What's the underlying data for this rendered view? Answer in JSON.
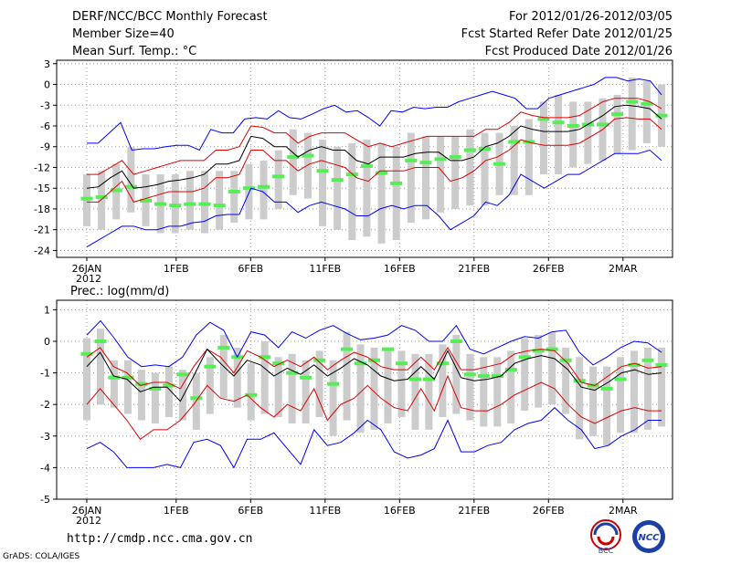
{
  "header": {
    "title": "DERF/NCC/BCC Monthly Forecast",
    "member_size": "Member Size=40",
    "variable1": "Mean Surf. Temp.: °C",
    "period": "For 2012/01/26-2012/03/05",
    "started": "Fcst Started Refer Date 2012/01/25",
    "produced": "Fcst Produced Date 2012/01/26"
  },
  "footer": {
    "url": "http://cmdp.ncc.cma.gov.cn",
    "grads": "GrADS: COLA/IGES",
    "logo1_text": "BCC",
    "logo2_text": "NCC"
  },
  "colors": {
    "envelope": "#0000ff",
    "spread": "#e00000",
    "mean": "#000000",
    "bar": "#cccccc",
    "median": "#55ee55",
    "grid": "#888888"
  },
  "chart_data": [
    {
      "type": "line",
      "title": "Mean Surf. Temp.: °C",
      "ylim": [
        -25,
        3.5
      ],
      "yticks": [
        3,
        0,
        -3,
        -6,
        -9,
        -12,
        -15,
        -18,
        -21,
        -24
      ],
      "ytick_labels": [
        "3",
        "0",
        "-3",
        "-6",
        "-9",
        "-12",
        "-15",
        "-18",
        "-21",
        "-24"
      ],
      "x_days": 40,
      "xtick_days": [
        0,
        6,
        11,
        16,
        21,
        26,
        31,
        36
      ],
      "xtick_labels": [
        "26JAN",
        "1FEB",
        "6FEB",
        "11FEB",
        "16FEB",
        "21FEB",
        "26FEB",
        "2MAR"
      ],
      "xtick_sublabel": "2012",
      "series": [
        {
          "name": "max",
          "values": [
            -8.5,
            -8.5,
            -7,
            -5.5,
            -9.5,
            -9.3,
            -9.3,
            -9,
            -8.8,
            -8.8,
            -9.5,
            -6.5,
            -7,
            -7,
            -5,
            -4.8,
            -5,
            -3.8,
            -4.8,
            -5,
            -4.3,
            -3.5,
            -3,
            -4,
            -3.8,
            -4.8,
            -6,
            -3.8,
            -4,
            -3.3,
            -3.5,
            -3.3,
            -3.3,
            -2.5,
            -2,
            -1.5,
            -1,
            -1.5,
            -2,
            -3.5,
            -3.5,
            -2,
            -1.5,
            -1,
            -0.5,
            0,
            1,
            1,
            0.5,
            0.8,
            0.5,
            -1.5
          ]
        },
        {
          "name": "q_high",
          "values": [
            -13,
            -13,
            -12,
            -11,
            -13,
            -12.5,
            -12,
            -11.5,
            -11,
            -11,
            -11,
            -9.5,
            -9.5,
            -9,
            -6,
            -6.2,
            -7,
            -7,
            -8.5,
            -7.5,
            -7,
            -7,
            -7,
            -8,
            -9,
            -8.5,
            -9,
            -8.5,
            -8,
            -7.5,
            -7.5,
            -7.5,
            -7.5,
            -7.5,
            -6.5,
            -6.5,
            -5.5,
            -4,
            -4.5,
            -4.8,
            -4.8,
            -4.8,
            -4.5,
            -3.5,
            -2.5,
            -2,
            -2,
            -2,
            -2.5,
            -3.5
          ]
        },
        {
          "name": "mean",
          "values": [
            -15,
            -14.8,
            -13.5,
            -12.5,
            -15,
            -14.8,
            -14.5,
            -14,
            -13.8,
            -13.5,
            -13,
            -11.5,
            -11.5,
            -11,
            -7.5,
            -7.8,
            -9,
            -9,
            -10.5,
            -9.5,
            -9,
            -9.5,
            -9.5,
            -11,
            -11.5,
            -10.5,
            -10.5,
            -10.5,
            -10,
            -9.8,
            -9.8,
            -11,
            -11,
            -10.5,
            -9,
            -8.5,
            -7.5,
            -6,
            -6.5,
            -6.8,
            -6.8,
            -6.8,
            -6.5,
            -5.5,
            -4.5,
            -3.2,
            -3,
            -3.2,
            -3.5,
            -5
          ]
        },
        {
          "name": "q_low",
          "values": [
            -17,
            -17,
            -15.5,
            -14,
            -17,
            -16.5,
            -16,
            -15.5,
            -15.5,
            -15.5,
            -15,
            -13.5,
            -13.5,
            -13,
            -9.5,
            -9.5,
            -11,
            -11,
            -12.5,
            -11.5,
            -11,
            -11.5,
            -12,
            -13.5,
            -14,
            -12.5,
            -12.5,
            -12.5,
            -12,
            -12,
            -12,
            -14,
            -13.5,
            -12.5,
            -11,
            -10.5,
            -9.5,
            -8,
            -8.5,
            -8.8,
            -8.8,
            -8.8,
            -8.5,
            -7.5,
            -6.5,
            -5,
            -4.8,
            -5,
            -5,
            -6.5
          ]
        },
        {
          "name": "min",
          "values": [
            -23.5,
            -22.5,
            -21.5,
            -20.5,
            -20.5,
            -21,
            -21,
            -20.5,
            -20.5,
            -20,
            -19.8,
            -19,
            -18.8,
            -18.8,
            -15,
            -15.5,
            -17,
            -17,
            -18.5,
            -17.5,
            -17,
            -17.5,
            -18,
            -19,
            -19,
            -18,
            -17.5,
            -18,
            -17.5,
            -17.5,
            -19,
            -21,
            -20,
            -19,
            -17,
            -17.5,
            -16,
            -13,
            -14,
            -15,
            -14,
            -13,
            -13,
            -12,
            -11,
            -10,
            -10,
            -10,
            -9.5,
            -11
          ]
        }
      ],
      "boxes": [
        {
          "low": -20.5,
          "high": -13,
          "median": -16.5
        },
        {
          "low": -21,
          "high": -12.5,
          "median": -16.3
        },
        {
          "low": -19.5,
          "high": -11.5,
          "median": -15.3
        },
        {
          "low": -18.5,
          "high": -9,
          "median": -14.8
        },
        {
          "low": -20.5,
          "high": -13,
          "median": -16.8
        },
        {
          "low": -21.5,
          "high": -13,
          "median": -17.3
        },
        {
          "low": -21.5,
          "high": -13,
          "median": -17.5
        },
        {
          "low": -21,
          "high": -12.5,
          "median": -17.3
        },
        {
          "low": -21.5,
          "high": -12.5,
          "median": -17.3
        },
        {
          "low": -21,
          "high": -12.5,
          "median": -17.5
        },
        {
          "low": -20,
          "high": -12.5,
          "median": -15.5
        },
        {
          "low": -19.5,
          "high": -11.5,
          "median": -15
        },
        {
          "low": -19.5,
          "high": -11,
          "median": -14.8
        },
        {
          "low": -18,
          "high": -9.5,
          "median": -13.3
        },
        {
          "low": -16,
          "high": -6.5,
          "median": -10.5
        },
        {
          "low": -16.5,
          "high": -7,
          "median": -10.3
        },
        {
          "low": -20.5,
          "high": -8,
          "median": -12.5
        },
        {
          "low": -21,
          "high": -9,
          "median": -13.8
        },
        {
          "low": -22.5,
          "high": -8.5,
          "median": -13
        },
        {
          "low": -22,
          "high": -8,
          "median": -11.8
        },
        {
          "low": -23,
          "high": -8.5,
          "median": -12.8
        },
        {
          "low": -22.5,
          "high": -9,
          "median": -14.3
        },
        {
          "low": -20,
          "high": -7,
          "median": -11
        },
        {
          "low": -19.5,
          "high": -7.5,
          "median": -11.3
        },
        {
          "low": -18.5,
          "high": -7.5,
          "median": -10.8
        },
        {
          "low": -18,
          "high": -7.5,
          "median": -10.5
        },
        {
          "low": -17.5,
          "high": -6.5,
          "median": -9.5
        },
        {
          "low": -17.5,
          "high": -7,
          "median": -9.3
        },
        {
          "low": -16,
          "high": -7,
          "median": -11.5
        },
        {
          "low": -16,
          "high": -6,
          "median": -8.3
        },
        {
          "low": -16,
          "high": -5,
          "median": -8.3
        },
        {
          "low": -13,
          "high": -2.5,
          "median": -5
        },
        {
          "low": -13,
          "high": -1.5,
          "median": -5.5
        },
        {
          "low": -12,
          "high": -2.5,
          "median": -6
        },
        {
          "low": -11.5,
          "high": -2.5,
          "median": -5.8
        },
        {
          "low": -11,
          "high": -2,
          "median": -5.8
        },
        {
          "low": -10,
          "high": -1.5,
          "median": -4.3
        },
        {
          "low": -9.5,
          "high": 1,
          "median": -2.5
        },
        {
          "low": -8.5,
          "high": 0.5,
          "median": -2.8
        },
        {
          "low": -9,
          "high": 0,
          "median": -4.5
        }
      ]
    },
    {
      "type": "line",
      "title": "Prec.: log(mm/d)",
      "ylim": [
        -5,
        1.3
      ],
      "yticks": [
        1,
        0,
        -1,
        -2,
        -3,
        -4,
        -5
      ],
      "ytick_labels": [
        "1",
        "0",
        "-1",
        "-2",
        "-3",
        "-4",
        "-5"
      ],
      "x_days": 40,
      "xtick_days": [
        0,
        6,
        11,
        16,
        21,
        26,
        31,
        36
      ],
      "xtick_labels": [
        "26JAN",
        "1FEB",
        "6FEB",
        "11FEB",
        "16FEB",
        "21FEB",
        "26FEB",
        "2MAR"
      ],
      "xtick_sublabel": "2012",
      "series": [
        {
          "name": "max",
          "values": [
            0.2,
            0.65,
            0.1,
            -0.5,
            -0.8,
            -0.75,
            -0.8,
            -0.5,
            0.2,
            0.6,
            0.35,
            -0.5,
            0.3,
            0.2,
            -0.2,
            0.3,
            0.1,
            0.35,
            0.5,
            0.25,
            0.05,
            0.1,
            0.2,
            0.5,
            0.35,
            0,
            0,
            0.5,
            -0.25,
            -0.4,
            -0.2,
            0,
            0.15,
            0.1,
            0.3,
            0.35,
            -0.35,
            -0.75,
            -0.5,
            -0.2,
            0,
            -0.05,
            -0.35
          ]
        },
        {
          "name": "q_high",
          "values": [
            -0.5,
            -0.2,
            -0.8,
            -1,
            -1.4,
            -1.3,
            -1.3,
            -1.5,
            -0.8,
            -0.25,
            -0.5,
            -1,
            -0.3,
            -0.5,
            -0.8,
            -0.6,
            -0.8,
            -0.5,
            -0.9,
            -0.6,
            -0.35,
            -0.5,
            -0.8,
            -0.9,
            -0.9,
            -0.5,
            -0.9,
            -0.2,
            -0.9,
            -0.9,
            -0.8,
            -0.7,
            -0.4,
            -0.3,
            -0.25,
            -0.3,
            -0.7,
            -1.3,
            -1.4,
            -1.1,
            -0.8,
            -0.7,
            -0.85,
            -0.8
          ]
        },
        {
          "name": "mean",
          "values": [
            -0.8,
            -0.35,
            -1.1,
            -1.2,
            -1.6,
            -1.45,
            -1.45,
            -1.9,
            -1.1,
            -0.25,
            -0.7,
            -1.1,
            -0.6,
            -0.75,
            -1.1,
            -0.85,
            -1.05,
            -0.75,
            -1.1,
            -0.85,
            -0.55,
            -0.75,
            -1.1,
            -1.25,
            -1.2,
            -0.8,
            -1.2,
            -0.3,
            -1.15,
            -1.25,
            -1.2,
            -1.1,
            -0.7,
            -0.55,
            -0.45,
            -0.55,
            -0.9,
            -1.45,
            -1.55,
            -1.3,
            -1,
            -0.9,
            -1.05,
            -1
          ]
        },
        {
          "name": "q_low",
          "values": [
            -2,
            -1.5,
            -2,
            -2.5,
            -3.1,
            -2.8,
            -2.8,
            -2.5,
            -2,
            -1.4,
            -1.8,
            -1.9,
            -1.7,
            -2.1,
            -2.4,
            -2,
            -2.2,
            -1.5,
            -2.5,
            -2,
            -1.8,
            -1.4,
            -1.8,
            -2.1,
            -2.2,
            -1.5,
            -2.2,
            -1.1,
            -2.1,
            -2.2,
            -2.2,
            -2,
            -1.7,
            -1.5,
            -1.3,
            -1.5,
            -2,
            -2.4,
            -2.6,
            -2.4,
            -2.2,
            -2.1,
            -2.2,
            -2.2
          ]
        },
        {
          "name": "min",
          "values": [
            -3.4,
            -3.2,
            -3.5,
            -4,
            -4,
            -4,
            -3.9,
            -4,
            -3.2,
            -3.1,
            -3.3,
            -4,
            -3.1,
            -3.1,
            -2.9,
            -3.4,
            -3.9,
            -2.8,
            -3.3,
            -3.2,
            -2.9,
            -2.5,
            -2.8,
            -3.5,
            -3.7,
            -3.6,
            -3.4,
            -2.5,
            -3.5,
            -3.5,
            -3.3,
            -3.2,
            -2.8,
            -2.6,
            -2.5,
            -2.1,
            -2.5,
            -2.8,
            -3.4,
            -3.3,
            -3,
            -2.8,
            -2.5,
            -2.5
          ]
        }
      ],
      "boxes": [
        {
          "low": -2.5,
          "high": 0.1,
          "median": -0.4
        },
        {
          "low": -2.0,
          "high": 0.4,
          "median": 0.0
        },
        {
          "low": -2.1,
          "high": -0.6,
          "median": -1.15
        },
        {
          "low": -2.3,
          "high": -0.6,
          "median": -1.15
        },
        {
          "low": -2.5,
          "high": -0.9,
          "median": -1.35
        },
        {
          "low": -2.6,
          "high": -1.0,
          "median": -1.5
        },
        {
          "low": -2.4,
          "high": -0.8,
          "median": -1.4
        },
        {
          "low": -2.5,
          "high": -0.9,
          "median": -1.05
        },
        {
          "low": -2.8,
          "high": -1.0,
          "median": -1.8
        },
        {
          "low": -2.3,
          "high": -0.5,
          "median": -0.8
        },
        {
          "low": -1.8,
          "high": 0.2,
          "median": -0.2
        },
        {
          "low": -2.1,
          "high": -0.2,
          "median": -0.5
        },
        {
          "low": -2.5,
          "high": -0.7,
          "median": -1.7
        },
        {
          "low": -2.3,
          "high": 0.0,
          "median": -0.5
        },
        {
          "low": -2.4,
          "high": -0.5,
          "median": -0.7
        },
        {
          "low": -2.6,
          "high": -0.4,
          "median": -1.0
        },
        {
          "low": -2.6,
          "high": -0.6,
          "median": -1.15
        },
        {
          "low": -2.4,
          "high": -0.3,
          "median": -0.6
        },
        {
          "low": -3.0,
          "high": -0.6,
          "median": -1.35
        },
        {
          "low": -2.5,
          "high": 0.3,
          "median": -0.25
        },
        {
          "low": -2.9,
          "high": -0.1,
          "median": -0.7
        },
        {
          "low": -2.8,
          "high": -0.2,
          "median": -0.6
        },
        {
          "low": -2.6,
          "high": -0.2,
          "median": -0.25
        },
        {
          "low": -2.4,
          "high": -0.3,
          "median": -0.7
        },
        {
          "low": -2.8,
          "high": -0.4,
          "median": -1.2
        },
        {
          "low": -2.8,
          "high": -0.4,
          "median": -1.2
        },
        {
          "low": -2.4,
          "high": -0.1,
          "median": -0.7
        },
        {
          "low": -2.3,
          "high": 0.2,
          "median": 0.0
        },
        {
          "low": -2.5,
          "high": -0.4,
          "median": -1.05
        },
        {
          "low": -2.7,
          "high": -0.5,
          "median": -1.1
        },
        {
          "low": -2.7,
          "high": -0.5,
          "median": -1.1
        },
        {
          "low": -2.6,
          "high": -0.3,
          "median": -0.9
        },
        {
          "low": -2.2,
          "high": 0.1,
          "median": -0.5
        },
        {
          "low": -2.1,
          "high": 0.2,
          "median": -0.3
        },
        {
          "low": -2.0,
          "high": 0.3,
          "median": -0.25
        },
        {
          "low": -2.3,
          "high": -0.2,
          "median": -0.6
        },
        {
          "low": -3.1,
          "high": -0.5,
          "median": -1.25
        },
        {
          "low": -3.0,
          "high": -0.8,
          "median": -1.4
        },
        {
          "low": -3.3,
          "high": -0.8,
          "median": -1.5
        },
        {
          "low": -2.9,
          "high": -0.5,
          "median": -1.2
        },
        {
          "low": -2.9,
          "high": -0.3,
          "median": -0.75
        },
        {
          "low": -2.8,
          "high": -0.2,
          "median": -0.6
        },
        {
          "low": -2.7,
          "high": -0.2,
          "median": -0.75
        }
      ]
    }
  ]
}
